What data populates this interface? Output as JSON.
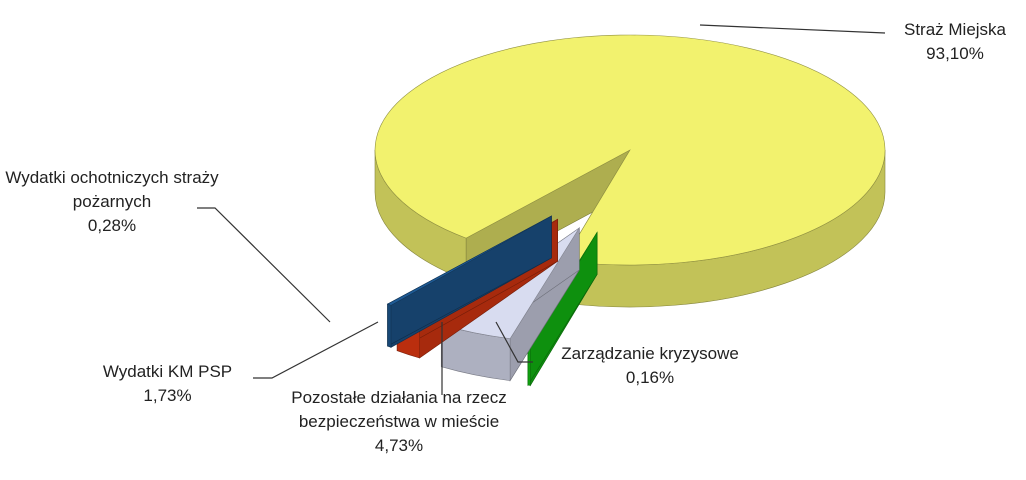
{
  "chart_data": {
    "type": "pie",
    "categories": [
      "Straż Miejska",
      "Zarządzanie kryzysowe",
      "Pozostałe działania na rzecz bezpieczeństwa w mieście",
      "Wydatki KM PSP",
      "Wydatki ochotniczych straży pożarnych"
    ],
    "values": [
      93.1,
      0.16,
      4.73,
      1.73,
      0.28
    ],
    "value_labels": [
      "93,10%",
      "0,16%",
      "4,73%",
      "1,73%",
      "0,28%"
    ],
    "colors": [
      "#f2f26e",
      "#14c814",
      "#d8dcf0",
      "#e83a12",
      "#1e5a94"
    ]
  }
}
